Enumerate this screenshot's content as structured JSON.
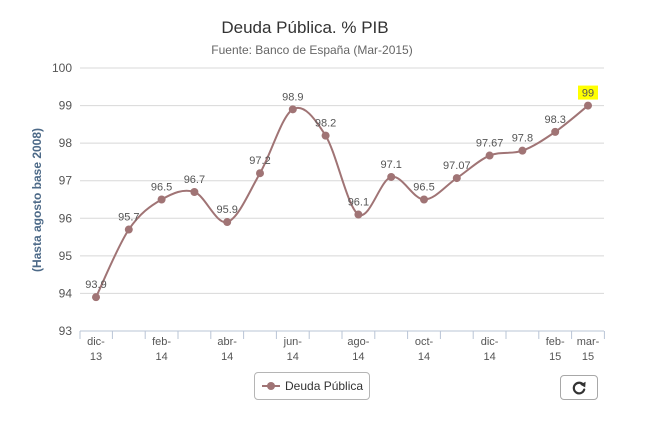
{
  "chart_data": {
    "type": "line",
    "title": "Deuda Pública. % PIB",
    "subtitle": "Fuente: Banco de España (Mar-2015)",
    "xlabel": "",
    "ylabel": "(Hasta agosto base 2008)",
    "ylim": [
      93,
      100
    ],
    "yticks": [
      "93",
      "94",
      "95",
      "96",
      "97",
      "98",
      "99",
      "100"
    ],
    "tick_labels": [
      [
        "dic-",
        "13"
      ],
      [
        "feb-",
        "14"
      ],
      [
        "abr-",
        "14"
      ],
      [
        "jun-",
        "14"
      ],
      [
        "ago-",
        "14"
      ],
      [
        "oct-",
        "14"
      ],
      [
        "dic-",
        "14"
      ],
      [
        "feb-",
        "15"
      ],
      [
        "mar-",
        "15"
      ]
    ],
    "tick_indices": [
      0,
      2,
      4,
      6,
      8,
      10,
      12,
      14,
      15
    ],
    "series": [
      {
        "name": "Deuda Pública",
        "color": "#a07475",
        "values": [
          93.9,
          95.7,
          96.5,
          96.7,
          95.9,
          97.2,
          98.9,
          98.2,
          96.1,
          97.1,
          96.5,
          97.07,
          97.67,
          97.8,
          98.3,
          99
        ],
        "labels": [
          "93.9",
          "95.7",
          "96.5",
          "96.7",
          "95.9",
          "97.2",
          "98.9",
          "98.2",
          "96.1",
          "97.1",
          "96.5",
          "97.07",
          "97.67",
          "97.8",
          "98.3",
          "99"
        ]
      }
    ],
    "highlight_color": "#ffff00",
    "grid": true,
    "legend": "bottom-center"
  },
  "legend": {
    "label": "Deuda Pública"
  },
  "controls": {
    "reset_icon": "refresh-icon"
  }
}
